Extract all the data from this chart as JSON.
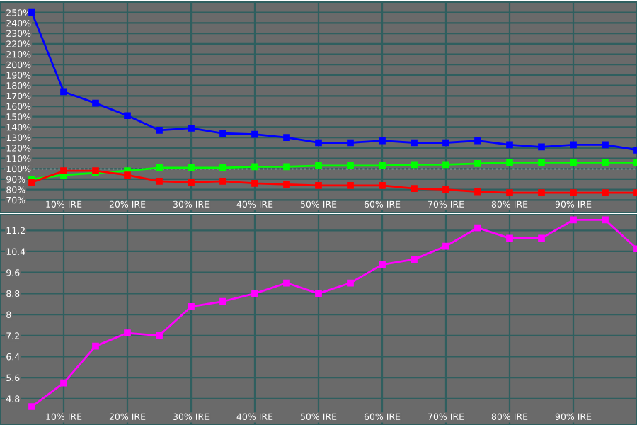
{
  "chart_data": [
    {
      "type": "line",
      "x": [
        5,
        10,
        15,
        20,
        25,
        30,
        35,
        40,
        45,
        50,
        55,
        60,
        65,
        70,
        75,
        80,
        85,
        90,
        95,
        100
      ],
      "xlim": [
        0,
        100
      ],
      "xticks": [
        {
          "value": 10,
          "label": "10% IRE"
        },
        {
          "value": 20,
          "label": "20% IRE"
        },
        {
          "value": 30,
          "label": "30% IRE"
        },
        {
          "value": 40,
          "label": "40% IRE"
        },
        {
          "value": 50,
          "label": "50% IRE"
        },
        {
          "value": 60,
          "label": "60% IRE"
        },
        {
          "value": 70,
          "label": "70% IRE"
        },
        {
          "value": 80,
          "label": "80% IRE"
        },
        {
          "value": 90,
          "label": "90% IRE"
        }
      ],
      "ylim": [
        58,
        260
      ],
      "yticks": [
        {
          "value": 70,
          "label": "70%"
        },
        {
          "value": 80,
          "label": "80%"
        },
        {
          "value": 90,
          "label": "90%"
        },
        {
          "value": 100,
          "label": "100%"
        },
        {
          "value": 110,
          "label": "110%"
        },
        {
          "value": 120,
          "label": "120%"
        },
        {
          "value": 130,
          "label": "130%"
        },
        {
          "value": 140,
          "label": "140%"
        },
        {
          "value": 150,
          "label": "150%"
        },
        {
          "value": 160,
          "label": "160%"
        },
        {
          "value": 170,
          "label": "170%"
        },
        {
          "value": 180,
          "label": "180%"
        },
        {
          "value": 190,
          "label": "190%"
        },
        {
          "value": 200,
          "label": "200%"
        },
        {
          "value": 210,
          "label": "210%"
        },
        {
          "value": 220,
          "label": "220%"
        },
        {
          "value": 230,
          "label": "230%"
        },
        {
          "value": 240,
          "label": "240%"
        },
        {
          "value": 250,
          "label": "250%"
        }
      ],
      "grid": true,
      "legend": false,
      "marker": "square",
      "line_style": "solid",
      "ref_lines": [
        {
          "axis": "y",
          "value": 100,
          "color": "#ffffff",
          "line_style": "dotted"
        }
      ],
      "series": [
        {
          "color": "#0000ff",
          "values": [
            250,
            174,
            163,
            151,
            137,
            139,
            134,
            133,
            130,
            125,
            125,
            127,
            125,
            125,
            127,
            123,
            121,
            123,
            123,
            118
          ]
        },
        {
          "color": "#00ff00",
          "values": [
            90,
            94,
            96,
            98,
            101,
            101,
            101,
            102,
            102,
            103,
            103,
            103,
            104,
            104,
            105,
            106,
            106,
            106,
            106,
            106
          ]
        },
        {
          "color": "#ff0000",
          "values": [
            87,
            98,
            98,
            94,
            88,
            87,
            88,
            86,
            85,
            84,
            84,
            84,
            81,
            80,
            78,
            77,
            77,
            77,
            77,
            77
          ]
        }
      ]
    },
    {
      "type": "line",
      "x": [
        5,
        10,
        15,
        20,
        25,
        30,
        35,
        40,
        45,
        50,
        55,
        60,
        65,
        70,
        75,
        80,
        85,
        90,
        95,
        100
      ],
      "xlim": [
        0,
        100
      ],
      "xticks": [
        {
          "value": 10,
          "label": "10% IRE"
        },
        {
          "value": 20,
          "label": "20% IRE"
        },
        {
          "value": 30,
          "label": "30% IRE"
        },
        {
          "value": 40,
          "label": "40% IRE"
        },
        {
          "value": 50,
          "label": "50% IRE"
        },
        {
          "value": 60,
          "label": "60% IRE"
        },
        {
          "value": 70,
          "label": "70% IRE"
        },
        {
          "value": 80,
          "label": "80% IRE"
        },
        {
          "value": 90,
          "label": "90% IRE"
        }
      ],
      "ylim": [
        3.8,
        11.8
      ],
      "yticks": [
        4.8,
        5.6,
        6.4,
        7.2,
        8,
        8.8,
        9.6,
        10.4,
        11.2
      ],
      "grid": true,
      "legend": false,
      "marker": "square",
      "line_style": "solid",
      "series": [
        {
          "color": "#ff00ff",
          "values": [
            4.5,
            5.4,
            6.8,
            7.3,
            7.2,
            8.3,
            8.5,
            8.8,
            9.2,
            8.8,
            9.2,
            9.9,
            10.1,
            10.6,
            11.3,
            10.9,
            10.9,
            11.6,
            11.6,
            10.5
          ]
        }
      ]
    }
  ]
}
